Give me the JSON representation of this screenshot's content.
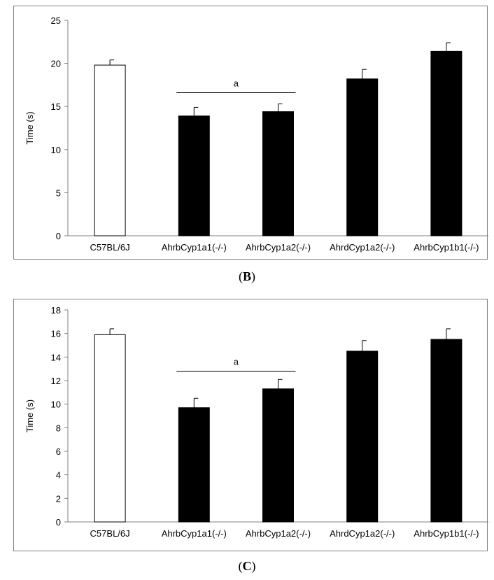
{
  "chart_data": [
    {
      "type": "bar",
      "panel_label": "B",
      "ylabel": "Time (s)",
      "xlabel": "",
      "ylim": [
        0,
        25
      ],
      "yticks": [
        0,
        5,
        10,
        15,
        20,
        25
      ],
      "categories": [
        "C57BL/6J",
        "AhrbCyp1a1(-/-)",
        "AhrbCyp1a2(-/-)",
        "AhrdCyp1a2(-/-)",
        "AhrbCyp1b1(-/-)"
      ],
      "values": [
        19.8,
        13.9,
        14.4,
        18.2,
        21.4
      ],
      "errors": [
        0.6,
        1.0,
        0.9,
        1.1,
        1.0
      ],
      "bar_fills": [
        "#ffffff",
        "#000000",
        "#000000",
        "#000000",
        "#000000"
      ],
      "annotation": {
        "text": "a",
        "from_category": 1,
        "to_category": 2,
        "y": 16.6
      },
      "grid": false,
      "legend": "none"
    },
    {
      "type": "bar",
      "panel_label": "C",
      "ylabel": "Time (s)",
      "xlabel": "",
      "ylim": [
        0,
        18
      ],
      "yticks": [
        0,
        2,
        4,
        6,
        8,
        10,
        12,
        14,
        16,
        18
      ],
      "categories": [
        "C57BL/6J",
        "AhrbCyp1a1(-/-)",
        "AhrbCyp1a2(-/-)",
        "AhrdCyp1a2(-/-)",
        "AhrbCyp1b1(-/-)"
      ],
      "values": [
        15.9,
        9.7,
        11.3,
        14.5,
        15.5
      ],
      "errors": [
        0.5,
        0.8,
        0.8,
        0.9,
        0.9
      ],
      "bar_fills": [
        "#ffffff",
        "#000000",
        "#000000",
        "#000000",
        "#000000"
      ],
      "annotation": {
        "text": "a",
        "from_category": 1,
        "to_category": 2,
        "y": 12.8
      },
      "grid": false,
      "legend": "none"
    }
  ]
}
